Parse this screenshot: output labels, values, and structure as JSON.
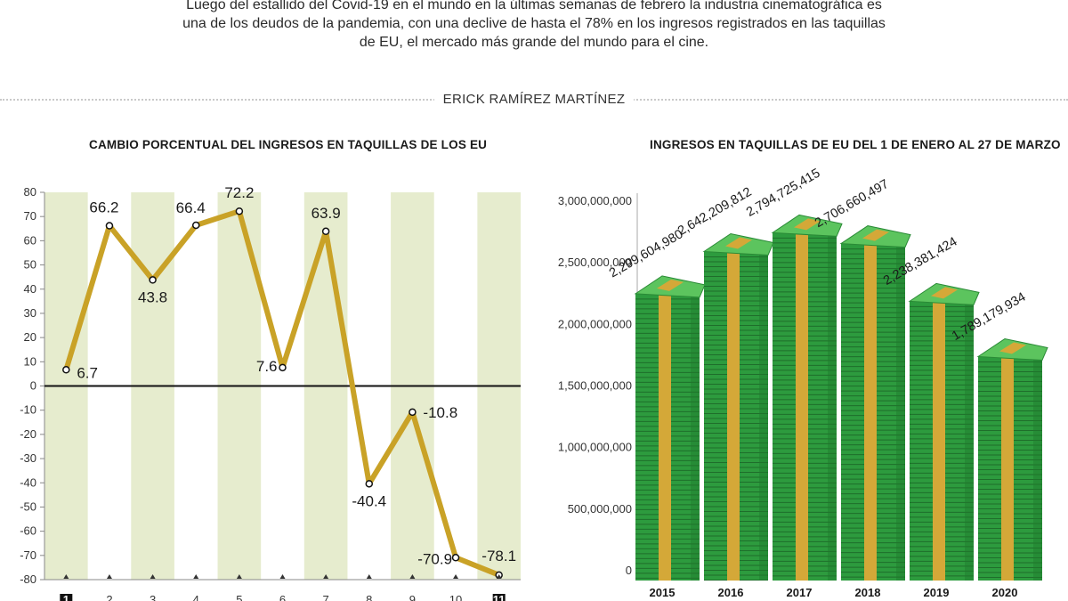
{
  "header": {
    "intro": "Luego del estallido del Covid-19 en el mundo en la últimas semanas de febrero la industria cinematográfica es una de los deudos de la pandemia, con una declive de hasta el 78% en los ingresos registrados en las taquillas de EU, el mercado más grande del mundo para el cine.",
    "author": "ERICK RAMÍREZ MARTÍNEZ"
  },
  "colors": {
    "line": "#c9a227",
    "band": "#e6ecce",
    "money_green": "#2d9b3e",
    "money_band": "#d4a838"
  },
  "chart_data": [
    {
      "type": "line",
      "title": "CAMBIO PORCENTUAL DEL INGRESOS EN TAQUILLAS DE LOS EU",
      "x": [
        "1",
        "2",
        "3",
        "4",
        "5",
        "6",
        "7",
        "8",
        "9",
        "10",
        "11"
      ],
      "values": [
        6.7,
        66.2,
        43.8,
        66.4,
        72.2,
        7.6,
        63.9,
        -40.4,
        -10.8,
        -70.9,
        -78.1
      ],
      "labels": [
        "6.7",
        "66.2",
        "43.8",
        "66.4",
        "72.2",
        "7.6",
        "63.9",
        "-40.4",
        "-10.8",
        "-70.9",
        "-78.1"
      ],
      "ylim": [
        -80,
        80
      ],
      "yticks": [
        80,
        70,
        60,
        50,
        40,
        30,
        20,
        10,
        0,
        -10,
        -20,
        -30,
        -40,
        -50,
        -60,
        -70,
        -80
      ],
      "grid": false
    },
    {
      "type": "bar",
      "title": "INGRESOS EN TAQUILLAS DE EU DEL 1 DE ENERO AL 27 DE MARZO",
      "categories": [
        "2015",
        "2016",
        "2017",
        "2018",
        "2019",
        "2020"
      ],
      "values": [
        2299604980,
        2642209812,
        2794725415,
        2706660497,
        2238381424,
        1789179934
      ],
      "labels": [
        "2,299,604,980",
        "2,642,209,812",
        "2,794,725,415",
        "2,706,660,497",
        "2,238,381,424",
        "1,789,179,934"
      ],
      "ylim": [
        0,
        3000000000
      ],
      "yticks": [
        "3,000,000,000",
        "2,500,000,000",
        "2,000,000,000",
        "1,500,000,000",
        "1,000,000,000",
        "500,000,000",
        "0"
      ]
    }
  ]
}
